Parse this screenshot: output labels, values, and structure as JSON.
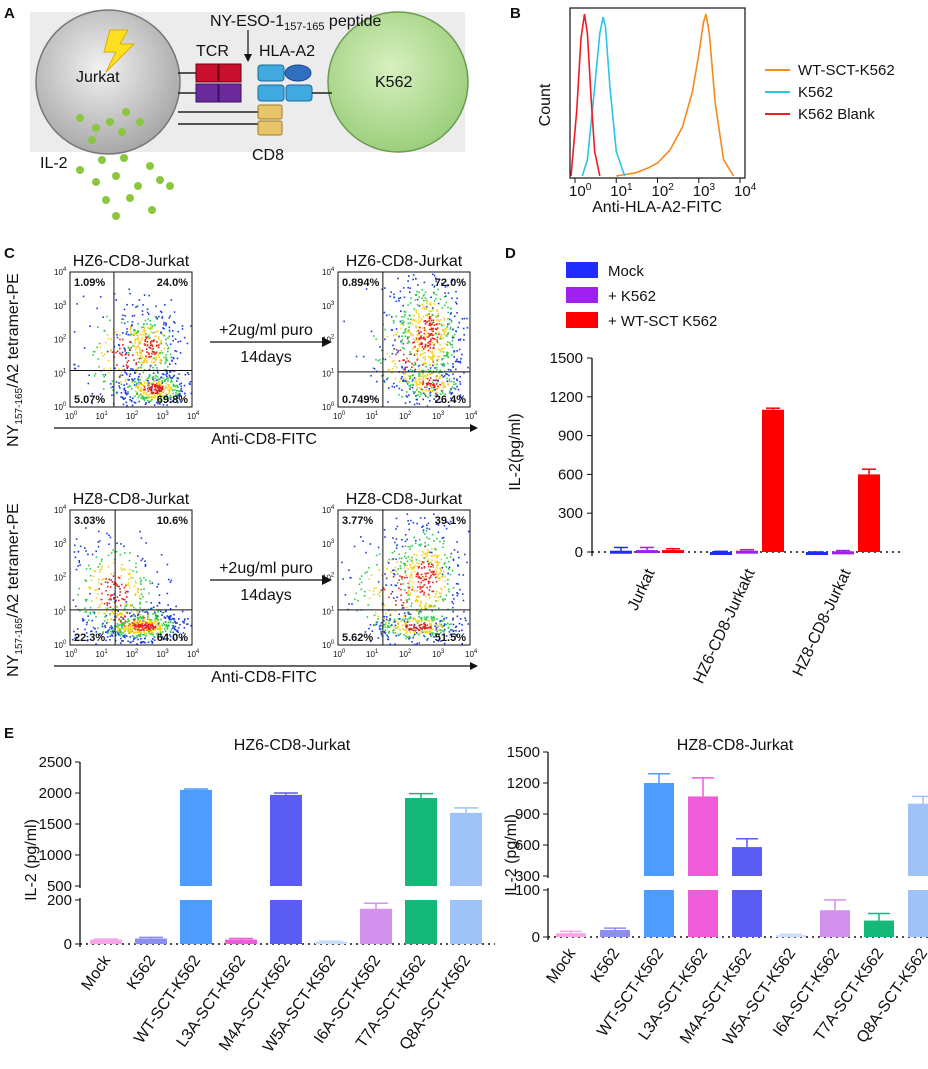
{
  "panel_labels": {
    "a": "A",
    "b": "B",
    "c": "C",
    "d": "D",
    "e": "E"
  },
  "panel_a": {
    "peptide": "NY-ESO-1",
    "peptide_sub": "157-165",
    "peptide_suffix": " peptide",
    "tcr": "TCR",
    "hla": "HLA-A2",
    "cell_left": "Jurkat",
    "cell_right": "K562",
    "cd8": "CD8",
    "il2": "IL-2"
  },
  "chart_data": [
    {
      "id": "B",
      "type": "line",
      "title": "",
      "xlabel": "Anti-HLA-A2-FITC",
      "ylabel": "Count",
      "x_scale": "log",
      "xlim": [
        1,
        10000
      ],
      "tick_labels": [
        "10",
        "10",
        "10",
        "10",
        "10"
      ],
      "tick_exponents": [
        "0",
        "1",
        "2",
        "3",
        "4"
      ],
      "series": [
        {
          "name": "WT-SCT-K562",
          "color": "#f58a1f",
          "x": [
            10,
            30,
            60,
            100,
            200,
            400,
            700,
            1000,
            1300,
            1500,
            1800,
            2500,
            4000,
            7000
          ],
          "y": [
            0,
            2,
            5,
            8,
            16,
            30,
            52,
            75,
            95,
            100,
            88,
            45,
            10,
            0
          ]
        },
        {
          "name": "K562",
          "color": "#2bc4ea",
          "x": [
            1.5,
            2,
            3,
            4,
            4.8,
            5.5,
            7,
            10,
            16
          ],
          "y": [
            0,
            10,
            55,
            88,
            98,
            92,
            55,
            15,
            0
          ]
        },
        {
          "name": "K562 Blank",
          "color": "#ee1c24",
          "x": [
            0.8,
            1.1,
            1.4,
            1.7,
            2,
            2.5,
            3,
            4
          ],
          "y": [
            0,
            40,
            85,
            100,
            88,
            45,
            15,
            0
          ]
        }
      ]
    },
    {
      "id": "C",
      "type": "scatter",
      "xlabel": "Anti-CD8-FITC",
      "ylabel": "NY",
      "ylabel_sub": "157-165",
      "ylabel_suffix": "/A2 tetramer-PE",
      "arrow_top": "+2ug/ml puro",
      "arrow_bottom": "14days",
      "tick_base": "10",
      "tick_exponents": [
        "0",
        "1",
        "2",
        "3",
        "4"
      ],
      "plots": [
        {
          "title": "HZ6-CD8-Jurkat",
          "quadrants": {
            "ul": "1.09%",
            "ur": "24.0%",
            "ll": "5.07%",
            "lr": "69.8%"
          }
        },
        {
          "title": "HZ6-CD8-Jurkat",
          "quadrants": {
            "ul": "0.894%",
            "ur": "72.0%",
            "ll": "0.749%",
            "lr": "26.4%"
          }
        },
        {
          "title": "HZ8-CD8-Jurkat",
          "quadrants": {
            "ul": "3.03%",
            "ur": "10.6%",
            "ll": "22.3%",
            "lr": "64.0%"
          }
        },
        {
          "title": "HZ8-CD8-Jurkat",
          "quadrants": {
            "ul": "3.77%",
            "ur": "39.1%",
            "ll": "5.62%",
            "lr": "51.5%"
          }
        }
      ]
    },
    {
      "id": "D",
      "type": "bar",
      "ylabel": "IL-2(pg/ml)",
      "ylim": [
        0,
        1500
      ],
      "yticks": [
        "0",
        "300",
        "600",
        "900",
        "1200",
        "1500"
      ],
      "categories": [
        "Jurkat",
        "HZ6-CD8-Jurkakt",
        "HZ8-CD8-Jurkat"
      ],
      "series": [
        {
          "name": "Mock",
          "color": "#1f2bff",
          "values": [
            10,
            -10,
            -12
          ],
          "errors": [
            25,
            15,
            12
          ]
        },
        {
          "name": "+ K562",
          "color": "#a020f0",
          "values": [
            15,
            10,
            5
          ],
          "errors": [
            20,
            8,
            6
          ]
        },
        {
          "name": "+ WT-SCT K562",
          "color": "#ff0000",
          "values": [
            15,
            1100,
            600
          ],
          "errors": [
            10,
            12,
            40
          ]
        }
      ]
    },
    {
      "id": "E-left",
      "type": "bar",
      "title": "HZ6-CD8-Jurkat",
      "ylabel": "IL-2 (pg/ml)",
      "categories": [
        "Mock",
        "K562",
        "WT-SCT-K562",
        "L3A-SCT-K562",
        "M4A-SCT-K562",
        "W5A-SCT-K562",
        "I6A-SCT-K562",
        "T7A-SCT-K562",
        "Q8A-SCT-K562"
      ],
      "values": [
        20,
        25,
        2050,
        20,
        1970,
        10,
        160,
        1920,
        1680
      ],
      "errors": [
        3,
        5,
        15,
        5,
        30,
        3,
        25,
        70,
        80
      ],
      "colors": [
        "#f6a5e8",
        "#8c8ef2",
        "#4d9cff",
        "#f05bda",
        "#5b5cf3",
        "#c8dcfb",
        "#d391ee",
        "#14b97a",
        "#9fc3f7"
      ],
      "axis_break": [
        200,
        500
      ],
      "yticks_low": [
        "0",
        "200"
      ],
      "yticks_high": [
        "500",
        "1000",
        "1500",
        "2000",
        "2500"
      ]
    },
    {
      "id": "E-right",
      "type": "bar",
      "title": "HZ8-CD8-Jurkat",
      "ylabel": "IL-2 (pg/ml)",
      "categories": [
        "Mock",
        "K562",
        "WT-SCT-K562",
        "L3A-SCT-K562",
        "M4A-SCT-K562",
        "W5A-SCT-K562",
        "I6A-SCT-K562",
        "T7A-SCT-K562",
        "Q8A-SCT-K562"
      ],
      "values": [
        8,
        15,
        1200,
        1070,
        580,
        4,
        57,
        35,
        1000
      ],
      "errors": [
        4,
        4,
        90,
        180,
        80,
        2,
        22,
        15,
        70
      ],
      "colors": [
        "#f6a5e8",
        "#8c8ef2",
        "#4d9cff",
        "#f05bda",
        "#5b5cf3",
        "#c8dcfb",
        "#d391ee",
        "#14b97a",
        "#9fc3f7"
      ],
      "axis_break": [
        100,
        300
      ],
      "yticks_low": [
        "0",
        "100"
      ],
      "yticks_high": [
        "300",
        "600",
        "900",
        "1200",
        "1500"
      ]
    }
  ]
}
